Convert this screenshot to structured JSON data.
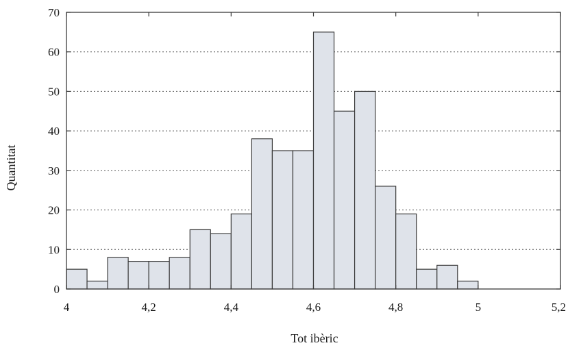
{
  "chart_data": {
    "type": "bar",
    "subtype": "histogram",
    "title": "",
    "xlabel": "Tot ibèric",
    "ylabel": "Quantitat",
    "xlim": [
      4,
      5.2
    ],
    "ylim": [
      0,
      70
    ],
    "x_ticks": [
      4,
      4.2,
      4.4,
      4.6,
      4.8,
      5,
      5.2
    ],
    "x_tick_labels": [
      "4",
      "4,2",
      "4,4",
      "4,6",
      "4,8",
      "5",
      "5,2"
    ],
    "y_ticks": [
      0,
      10,
      20,
      30,
      40,
      50,
      60,
      70
    ],
    "y_tick_labels": [
      "0",
      "10",
      "20",
      "30",
      "40",
      "50",
      "60",
      "70"
    ],
    "bin_width": 0.05,
    "bins": [
      {
        "x0": 4.0,
        "x1": 4.05,
        "value": 5
      },
      {
        "x0": 4.05,
        "x1": 4.1,
        "value": 2
      },
      {
        "x0": 4.1,
        "x1": 4.15,
        "value": 8
      },
      {
        "x0": 4.15,
        "x1": 4.2,
        "value": 7
      },
      {
        "x0": 4.2,
        "x1": 4.25,
        "value": 7
      },
      {
        "x0": 4.25,
        "x1": 4.3,
        "value": 8
      },
      {
        "x0": 4.3,
        "x1": 4.35,
        "value": 15
      },
      {
        "x0": 4.35,
        "x1": 4.4,
        "value": 14
      },
      {
        "x0": 4.4,
        "x1": 4.45,
        "value": 19
      },
      {
        "x0": 4.45,
        "x1": 4.5,
        "value": 38
      },
      {
        "x0": 4.5,
        "x1": 4.55,
        "value": 35
      },
      {
        "x0": 4.55,
        "x1": 4.6,
        "value": 35
      },
      {
        "x0": 4.6,
        "x1": 4.65,
        "value": 65
      },
      {
        "x0": 4.65,
        "x1": 4.7,
        "value": 45
      },
      {
        "x0": 4.7,
        "x1": 4.75,
        "value": 50
      },
      {
        "x0": 4.75,
        "x1": 4.8,
        "value": 26
      },
      {
        "x0": 4.8,
        "x1": 4.85,
        "value": 19
      },
      {
        "x0": 4.85,
        "x1": 4.9,
        "value": 5
      },
      {
        "x0": 4.9,
        "x1": 4.95,
        "value": 6
      },
      {
        "x0": 4.95,
        "x1": 5.0,
        "value": 2
      }
    ],
    "grid": {
      "y": true,
      "x": false,
      "style": "dotted"
    },
    "colors": {
      "bar_fill": "#dfe3ea",
      "bar_stroke": "#3a3a3a",
      "grid": "#555555",
      "axis": "#3a3a3a"
    }
  }
}
